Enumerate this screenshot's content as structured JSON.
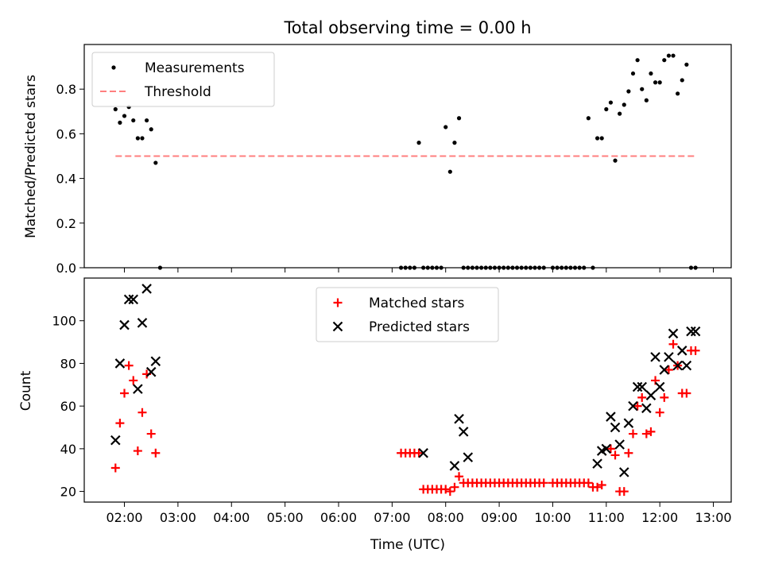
{
  "chart_data": [
    {
      "type": "scatter",
      "title": "Total observing time = 0.00 h",
      "xlabel": "",
      "ylabel": "Matched/Predicted stars",
      "ylim": [
        0,
        1.0
      ],
      "xlim": [
        "01:15",
        "13:20"
      ],
      "y_ticks": [
        0.0,
        0.2,
        0.4,
        0.6,
        0.8
      ],
      "y_tick_labels": [
        "0.0",
        "0.2",
        "0.4",
        "0.6",
        "0.8"
      ],
      "legend_position": "top-left",
      "series": [
        {
          "name": "Measurements",
          "marker": "dot",
          "color": "#000000",
          "x": [
            "01:50",
            "01:55",
            "02:00",
            "02:05",
            "02:10",
            "02:15",
            "02:20",
            "02:25",
            "02:30",
            "02:35",
            "02:40",
            "07:10",
            "07:15",
            "07:20",
            "07:25",
            "07:30",
            "07:35",
            "07:40",
            "07:45",
            "07:50",
            "07:55",
            "08:00",
            "08:05",
            "08:10",
            "08:15",
            "08:20",
            "08:25",
            "08:30",
            "08:35",
            "08:40",
            "08:45",
            "08:50",
            "08:55",
            "09:00",
            "09:05",
            "09:10",
            "09:15",
            "09:20",
            "09:25",
            "09:30",
            "09:35",
            "09:40",
            "09:45",
            "09:50",
            "10:00",
            "10:05",
            "10:10",
            "10:15",
            "10:20",
            "10:25",
            "10:30",
            "10:35",
            "10:40",
            "10:45",
            "10:50",
            "10:55",
            "11:00",
            "11:05",
            "11:10",
            "11:15",
            "11:20",
            "11:25",
            "11:30",
            "11:35",
            "11:40",
            "11:45",
            "11:50",
            "11:55",
            "12:00",
            "12:05",
            "12:10",
            "12:15",
            "12:20",
            "12:25",
            "12:30",
            "12:35",
            "12:40"
          ],
          "y": [
            0.71,
            0.65,
            0.68,
            0.72,
            0.66,
            0.58,
            0.58,
            0.66,
            0.62,
            0.47,
            0.0,
            0.0,
            0.0,
            0.0,
            0.0,
            0.56,
            0.0,
            0.0,
            0.0,
            0.0,
            0.0,
            0.63,
            0.43,
            0.56,
            0.67,
            0.0,
            0.0,
            0.0,
            0.0,
            0.0,
            0.0,
            0.0,
            0.0,
            0.0,
            0.0,
            0.0,
            0.0,
            0.0,
            0.0,
            0.0,
            0.0,
            0.0,
            0.0,
            0.0,
            0.0,
            0.0,
            0.0,
            0.0,
            0.0,
            0.0,
            0.0,
            0.0,
            0.67,
            0.0,
            0.58,
            0.58,
            0.71,
            0.74,
            0.48,
            0.69,
            0.73,
            0.79,
            0.87,
            0.93,
            0.8,
            0.75,
            0.87,
            0.83,
            0.83,
            0.93,
            0.95,
            0.95,
            0.78,
            0.84,
            0.91,
            0.0,
            0.0
          ]
        },
        {
          "name": "Threshold",
          "marker": "dashed-line",
          "color": "#ff7f7f",
          "x": [
            "01:50",
            "12:40"
          ],
          "y": [
            0.5,
            0.5
          ]
        }
      ]
    },
    {
      "type": "scatter",
      "title": "",
      "xlabel": "Time (UTC)",
      "ylabel": "Count",
      "ylim": [
        15,
        120
      ],
      "xlim": [
        "01:15",
        "13:20"
      ],
      "x_ticks": [
        "02:00",
        "03:00",
        "04:00",
        "05:00",
        "06:00",
        "07:00",
        "08:00",
        "09:00",
        "10:00",
        "11:00",
        "12:00",
        "13:00"
      ],
      "y_ticks": [
        20,
        40,
        60,
        80,
        100
      ],
      "legend_position": "top-center",
      "series": [
        {
          "name": "Matched stars",
          "marker": "plus",
          "color": "#ff0000",
          "x": [
            "01:50",
            "01:55",
            "02:00",
            "02:05",
            "02:10",
            "02:15",
            "02:20",
            "02:25",
            "02:30",
            "02:35",
            "07:10",
            "07:15",
            "07:20",
            "07:25",
            "07:30",
            "07:35",
            "07:40",
            "07:45",
            "07:50",
            "07:55",
            "08:00",
            "08:05",
            "08:10",
            "08:15",
            "08:20",
            "08:25",
            "08:30",
            "08:35",
            "08:40",
            "08:45",
            "08:50",
            "08:55",
            "09:00",
            "09:05",
            "09:10",
            "09:15",
            "09:20",
            "09:25",
            "09:30",
            "09:35",
            "09:40",
            "09:45",
            "09:50",
            "10:00",
            "10:05",
            "10:10",
            "10:15",
            "10:20",
            "10:25",
            "10:30",
            "10:35",
            "10:40",
            "10:45",
            "10:50",
            "10:55",
            "11:05",
            "11:10",
            "11:15",
            "11:20",
            "11:25",
            "11:30",
            "11:35",
            "11:40",
            "11:45",
            "11:50",
            "11:55",
            "12:00",
            "12:05",
            "12:10",
            "12:15",
            "12:20",
            "12:25",
            "12:30",
            "12:35",
            "12:40"
          ],
          "y": [
            31,
            52,
            66,
            79,
            72,
            39,
            57,
            75,
            47,
            38,
            38,
            38,
            38,
            38,
            38,
            21,
            21,
            21,
            21,
            21,
            21,
            20,
            22,
            27,
            24,
            24,
            24,
            24,
            24,
            24,
            24,
            24,
            24,
            24,
            24,
            24,
            24,
            24,
            24,
            24,
            24,
            24,
            24,
            24,
            24,
            24,
            24,
            24,
            24,
            24,
            24,
            24,
            22,
            22,
            23,
            40,
            37,
            20,
            20,
            38,
            47,
            60,
            64,
            47,
            48,
            72,
            57,
            64,
            77,
            89,
            79,
            66,
            66,
            86,
            86
          ]
        },
        {
          "name": "Predicted stars",
          "marker": "x",
          "color": "#000000",
          "x": [
            "01:50",
            "01:55",
            "02:00",
            "02:05",
            "02:10",
            "02:15",
            "02:20",
            "02:25",
            "02:30",
            "02:35",
            "07:35",
            "08:10",
            "08:15",
            "08:20",
            "08:25",
            "10:50",
            "10:55",
            "11:00",
            "11:05",
            "11:10",
            "11:15",
            "11:20",
            "11:25",
            "11:30",
            "11:35",
            "11:40",
            "11:45",
            "11:50",
            "11:55",
            "12:00",
            "12:05",
            "12:10",
            "12:15",
            "12:20",
            "12:25",
            "12:30",
            "12:35",
            "12:40"
          ],
          "y": [
            44,
            80,
            98,
            110,
            110,
            68,
            99,
            115,
            76,
            81,
            38,
            32,
            54,
            48,
            36,
            33,
            39,
            40,
            55,
            50,
            42,
            29,
            52,
            60,
            69,
            69,
            59,
            65,
            83,
            69,
            77,
            83,
            94,
            79,
            86,
            79,
            95,
            95
          ]
        }
      ]
    }
  ]
}
